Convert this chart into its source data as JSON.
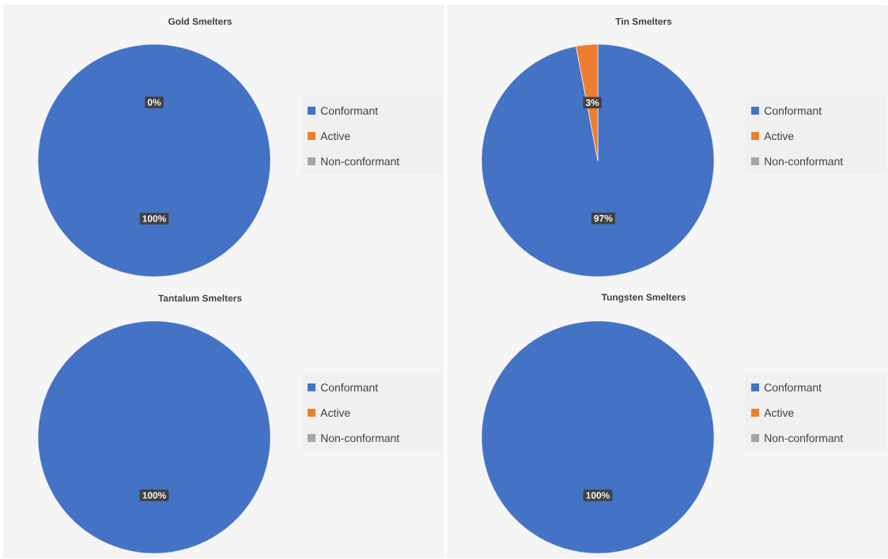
{
  "chart_data": [
    {
      "type": "pie",
      "title": "Gold Smelters",
      "categories": [
        "Conformant",
        "Active",
        "Non-conformant"
      ],
      "values": [
        100,
        0,
        0
      ],
      "colors": [
        "#4472c4",
        "#ed7d31",
        "#a5a5a5"
      ],
      "value_labels": [
        "100%",
        "0%",
        null
      ],
      "legend": "right"
    },
    {
      "type": "pie",
      "title": "Tin Smelters",
      "categories": [
        "Conformant",
        "Active",
        "Non-conformant"
      ],
      "values": [
        97,
        3,
        0
      ],
      "colors": [
        "#4472c4",
        "#ed7d31",
        "#a5a5a5"
      ],
      "value_labels": [
        "97%",
        "3%",
        null
      ],
      "legend": "right"
    },
    {
      "type": "pie",
      "title": "Tantalum Smelters",
      "categories": [
        "Conformant",
        "Active",
        "Non-conformant"
      ],
      "values": [
        100,
        0,
        0
      ],
      "colors": [
        "#4472c4",
        "#ed7d31",
        "#a5a5a5"
      ],
      "value_labels": [
        "100%",
        null,
        null
      ],
      "legend": "right"
    },
    {
      "type": "pie",
      "title": "Tungsten Smelters",
      "categories": [
        "Conformant",
        "Active",
        "Non-conformant"
      ],
      "values": [
        100,
        0,
        0
      ],
      "colors": [
        "#4472c4",
        "#ed7d31",
        "#a5a5a5"
      ],
      "value_labels": [
        "100%",
        null,
        null
      ],
      "legend": "right"
    }
  ]
}
